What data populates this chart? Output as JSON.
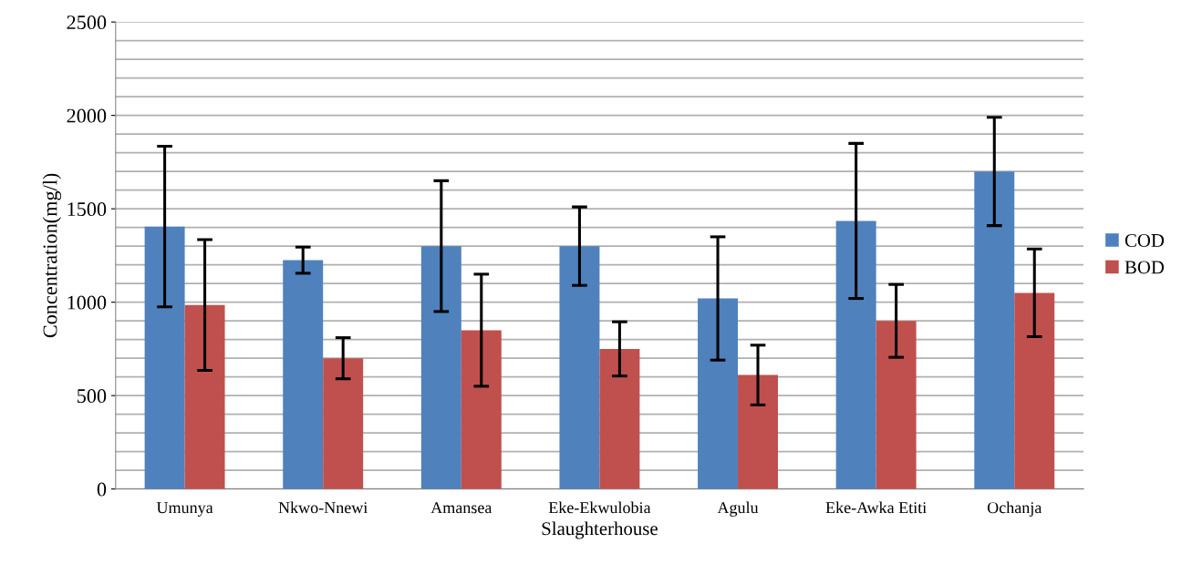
{
  "chart_data": {
    "type": "bar",
    "xlabel": "Slaughterhouse",
    "ylabel": "Concentration(mg/l)",
    "categories": [
      "Umunya",
      "Nkwo-Nnewi",
      "Amansea",
      "Eke-Ekwulobia",
      "Agulu",
      "Eke-Awka Etiti",
      "Ochanja"
    ],
    "series": [
      {
        "name": "COD",
        "color": "#4f81bd",
        "values": [
          1405,
          1225,
          1300,
          1300,
          1020,
          1435,
          1700
        ],
        "errors": [
          430,
          70,
          350,
          210,
          330,
          415,
          290
        ]
      },
      {
        "name": "BOD",
        "color": "#c0504d",
        "values": [
          985,
          700,
          850,
          750,
          610,
          900,
          1050
        ],
        "errors": [
          350,
          110,
          300,
          145,
          160,
          195,
          235
        ]
      }
    ],
    "ylim": [
      0,
      2500
    ],
    "yticks": [
      0,
      {
        "value": 100,
        "label": null
      },
      {
        "value": 200,
        "label": null
      },
      {
        "value": 300,
        "label": null
      },
      {
        "value": 400,
        "label": null
      },
      500,
      {
        "value": 600,
        "label": null
      },
      {
        "value": 700,
        "label": null
      },
      {
        "value": 800,
        "label": null
      },
      {
        "value": 900,
        "label": null
      },
      1000,
      {
        "value": 1100,
        "label": null
      },
      {
        "value": 1200,
        "label": null
      },
      {
        "value": 1300,
        "label": null
      },
      {
        "value": 1400,
        "label": null
      },
      1500,
      {
        "value": 1600,
        "label": null
      },
      {
        "value": 1700,
        "label": null
      },
      {
        "value": 1800,
        "label": null
      },
      {
        "value": 1900,
        "label": null
      },
      2000,
      {
        "value": 2100,
        "label": null
      },
      {
        "value": 2200,
        "label": null
      },
      {
        "value": 2300,
        "label": null
      },
      {
        "value": 2400,
        "label": null
      },
      2500
    ],
    "grid": "y",
    "legend": "right"
  }
}
